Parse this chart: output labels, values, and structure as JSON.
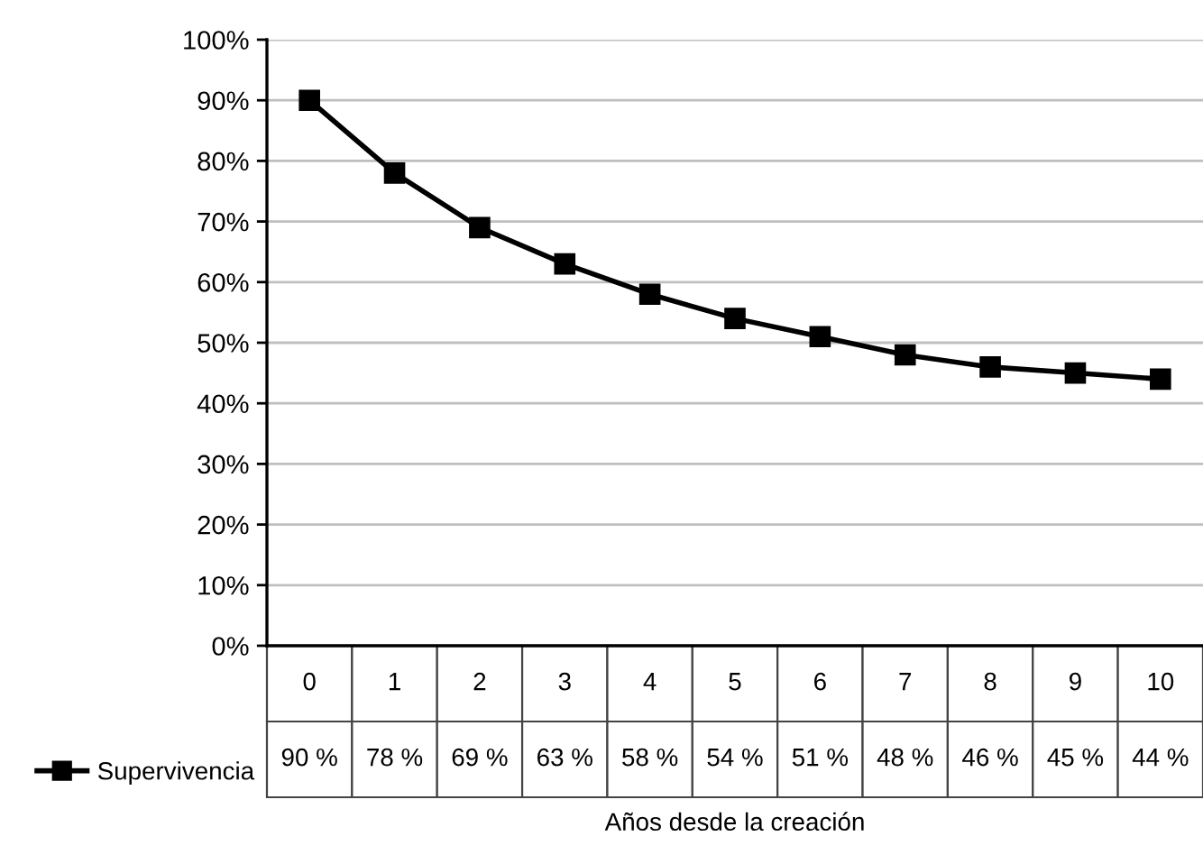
{
  "chart_data": {
    "type": "line",
    "xlabel": "Años desde la creación",
    "categories": [
      "0",
      "1",
      "2",
      "3",
      "4",
      "5",
      "6",
      "7",
      "8",
      "9",
      "10"
    ],
    "series": [
      {
        "name": "Supervivencia",
        "color": "#000000",
        "values": [
          90,
          78,
          69,
          63,
          58,
          54,
          51,
          48,
          46,
          45,
          44
        ],
        "value_labels": [
          "90 %",
          "78 %",
          "69 %",
          "63 %",
          "58 %",
          "54 %",
          "51 %",
          "48 %",
          "46 %",
          "45 %",
          "44 %"
        ]
      }
    ],
    "ylim": [
      0,
      100
    ],
    "yticks": [
      {
        "value": 0,
        "label": "0%"
      },
      {
        "value": 10,
        "label": "10%"
      },
      {
        "value": 20,
        "label": "20%"
      },
      {
        "value": 30,
        "label": "30%"
      },
      {
        "value": 40,
        "label": "40%"
      },
      {
        "value": 50,
        "label": "50%"
      },
      {
        "value": 60,
        "label": "60%"
      },
      {
        "value": 70,
        "label": "70%"
      },
      {
        "value": 80,
        "label": "80%"
      },
      {
        "value": 90,
        "label": "90%"
      },
      {
        "value": 100,
        "label": "100%"
      }
    ],
    "grid": "y",
    "legend": "bottom left",
    "marker": "square",
    "line_style": "solid"
  }
}
